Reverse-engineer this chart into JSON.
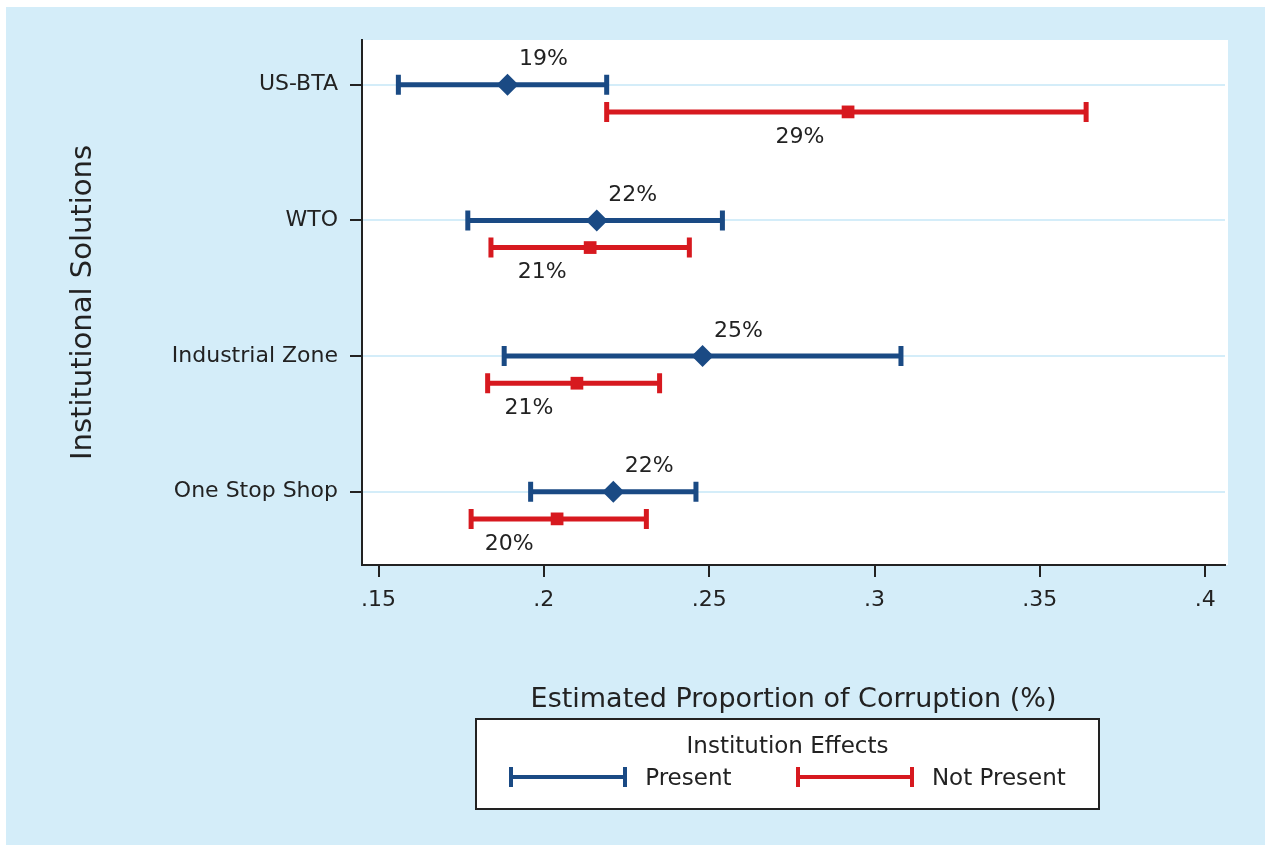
{
  "chart_data": {
    "type": "scatter",
    "orientation": "horizontal",
    "xlabel": "Estimated Proportion of Corruption (%)",
    "ylabel": "Institutional Solutions",
    "legend_title": "Institution Effects",
    "legend": "bottom",
    "grid": "y",
    "categories": [
      "US-BTA",
      "WTO",
      "Industrial Zone",
      "One Stop Shop"
    ],
    "xlim": [
      0.145,
      0.406
    ],
    "xticks": [
      {
        "value": 0.15,
        "label": ".15"
      },
      {
        "value": 0.2,
        "label": ".2"
      },
      {
        "value": 0.25,
        "label": ".25"
      },
      {
        "value": 0.3,
        "label": ".3"
      },
      {
        "value": 0.35,
        "label": ".35"
      },
      {
        "value": 0.4,
        "label": ".4"
      }
    ],
    "series": [
      {
        "name": "Present",
        "color": "#1a4a84",
        "marker": "diamond",
        "values": [
          0.189,
          0.216,
          0.248,
          0.221
        ],
        "errors": [
          [
            0.156,
            0.219
          ],
          [
            0.177,
            0.254
          ],
          [
            0.188,
            0.308
          ],
          [
            0.196,
            0.246
          ]
        ],
        "value_labels": [
          "19%",
          "22%",
          "25%",
          "22%"
        ]
      },
      {
        "name": "Not Present",
        "color": "#d7191f",
        "marker": "square",
        "values": [
          0.292,
          0.214,
          0.21,
          0.204
        ],
        "errors": [
          [
            0.219,
            0.364
          ],
          [
            0.184,
            0.244
          ],
          [
            0.183,
            0.235
          ],
          [
            0.178,
            0.231
          ]
        ],
        "value_labels": [
          "29%",
          "21%",
          "21%",
          "20%"
        ]
      }
    ]
  }
}
